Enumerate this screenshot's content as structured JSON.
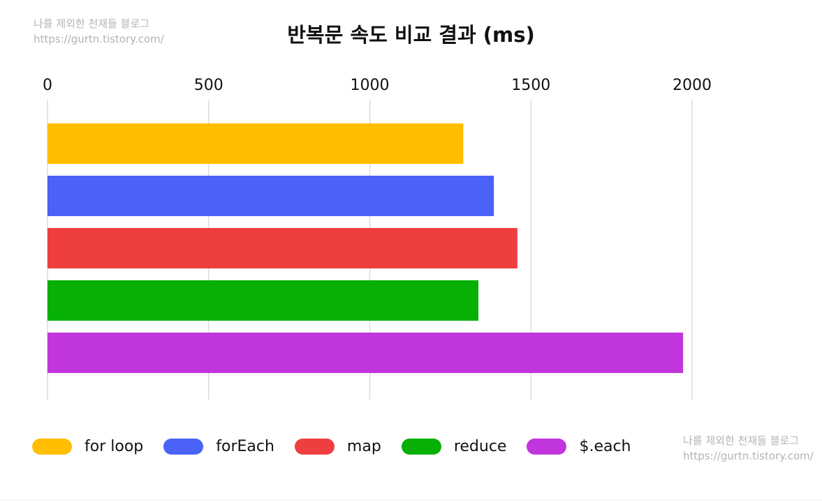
{
  "watermark": {
    "line1": "나를 제외한 천재들 블로그",
    "line2": "https://gurtn.tistory.com/"
  },
  "chart_data": {
    "type": "bar",
    "orientation": "horizontal",
    "title": "반복문 속도 비교 결과 (ms)",
    "xlabel": "",
    "ylabel": "",
    "categories": [
      "for loop",
      "forEach",
      "map",
      "reduce",
      "$.each"
    ],
    "values": [
      1290,
      1385,
      1458,
      1337,
      1972
    ],
    "colors": [
      "#FFBF00",
      "#4A62F5",
      "#EF3E40",
      "#07B004",
      "#C135DD"
    ],
    "xlim": [
      0,
      2000
    ],
    "ticks": [
      0,
      500,
      1000,
      1500,
      2000
    ],
    "tick_labels": [
      "0",
      "500",
      "1000",
      "1500",
      "2000"
    ],
    "axis_position": "top",
    "grid": true,
    "legend_position": "bottom"
  }
}
